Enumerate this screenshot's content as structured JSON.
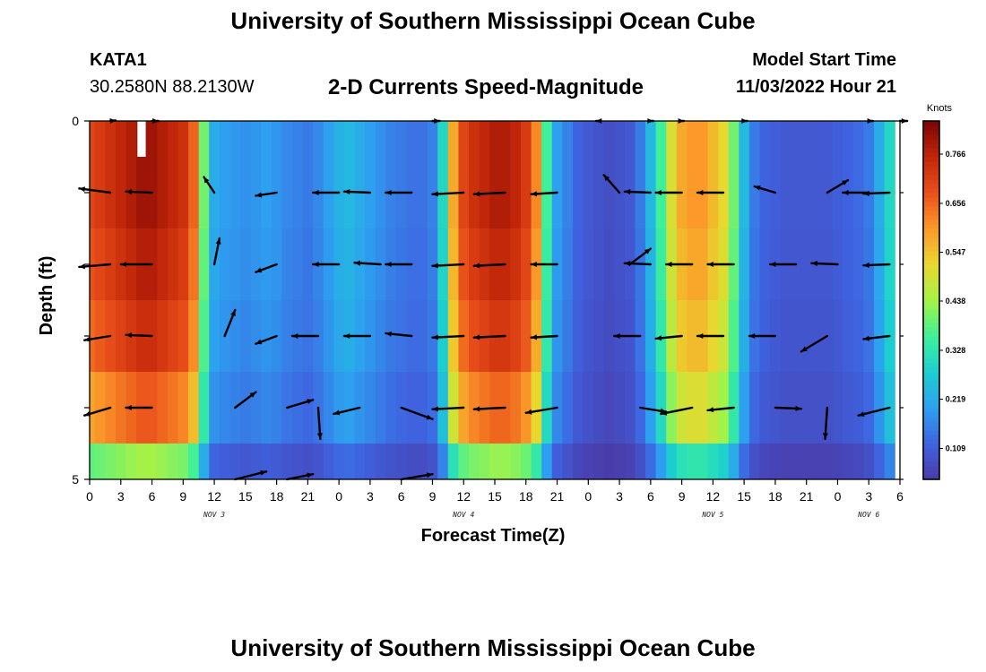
{
  "page": {
    "title": "University of Southern Mississippi Ocean Cube",
    "station_id": "KATA1",
    "station_coords": "30.2580N  88.2130W",
    "model_start_label": "Model Start Time",
    "model_start_value": "11/03/2022 Hour 21"
  },
  "colors": {
    "background": "#ffffff",
    "axis": "#000000",
    "arrow": "#000000",
    "colormap": [
      "#4a3aa8",
      "#3f63e0",
      "#2da0f0",
      "#1ccfd0",
      "#3ef09a",
      "#a5f246",
      "#e9d82f",
      "#fb9a2a",
      "#e9501a",
      "#c2260a",
      "#7a0403"
    ]
  },
  "chart_data": {
    "type": "heatmap",
    "title": "2-D Currents Speed-Magnitude",
    "xlabel": "Forecast Time(Z)",
    "ylabel": "Depth (ft)",
    "colorbar_label": "Knots",
    "colorbar_ticks": [
      0.109,
      0.219,
      0.328,
      0.438,
      0.547,
      0.656,
      0.766
    ],
    "color_range": [
      0.04,
      0.84
    ],
    "x_unit": "forecast hours from 11/03 00Z",
    "xlim": [
      0,
      78
    ],
    "x_tick_hours": [
      0,
      3,
      6,
      9,
      12,
      15,
      18,
      21,
      24,
      27,
      30,
      33,
      36,
      39,
      42,
      45,
      48,
      51,
      54,
      57,
      60,
      63,
      66,
      69,
      72,
      75,
      78
    ],
    "x_tick_labels": [
      "0",
      "3",
      "6",
      "9",
      "12",
      "15",
      "18",
      "21",
      "0",
      "3",
      "6",
      "9",
      "12",
      "15",
      "18",
      "21",
      "0",
      "3",
      "6",
      "9",
      "12",
      "15",
      "18",
      "21",
      "0",
      "3",
      "6"
    ],
    "day_labels": [
      {
        "hour": 12,
        "text": "NOV 3"
      },
      {
        "hour": 36,
        "text": "NOV 4"
      },
      {
        "hour": 60,
        "text": "NOV 5"
      },
      {
        "hour": 75,
        "text": "NOV 6"
      }
    ],
    "ylim": [
      0,
      5
    ],
    "y_ticks": [
      0,
      1,
      2,
      3,
      4,
      5
    ],
    "y_tick_labels": [
      "0",
      "",
      "",
      "",
      "",
      "5"
    ],
    "depth_bins": [
      0,
      0.5,
      1.5,
      2.5,
      3.5,
      4.5,
      5
    ],
    "time_hours": [
      0,
      1,
      2,
      3,
      4,
      5,
      6,
      7,
      8,
      9,
      10,
      11,
      12,
      13,
      14,
      15,
      16,
      17,
      18,
      19,
      20,
      21,
      22,
      23,
      24,
      25,
      26,
      27,
      28,
      29,
      30,
      31,
      32,
      33,
      34,
      35,
      36,
      37,
      38,
      39,
      40,
      41,
      42,
      43,
      44,
      45,
      46,
      47,
      48,
      49,
      50,
      51,
      52,
      53,
      54,
      55,
      56,
      57,
      58,
      59,
      60,
      61,
      62,
      63,
      64,
      65,
      66,
      67,
      68,
      69,
      70,
      71,
      72,
      73,
      74,
      75,
      76,
      77
    ],
    "speed_profile_knots": [
      0.7,
      0.72,
      0.74,
      0.76,
      0.78,
      0.8,
      0.8,
      0.78,
      0.76,
      0.74,
      0.66,
      0.4,
      0.22,
      0.2,
      0.19,
      0.18,
      0.19,
      0.2,
      0.19,
      0.17,
      0.16,
      0.15,
      0.17,
      0.2,
      0.23,
      0.24,
      0.22,
      0.2,
      0.18,
      0.16,
      0.15,
      0.14,
      0.14,
      0.16,
      0.3,
      0.58,
      0.7,
      0.74,
      0.76,
      0.78,
      0.78,
      0.76,
      0.72,
      0.62,
      0.36,
      0.2,
      0.16,
      0.12,
      0.1,
      0.09,
      0.08,
      0.09,
      0.1,
      0.15,
      0.24,
      0.36,
      0.5,
      0.58,
      0.6,
      0.6,
      0.56,
      0.52,
      0.4,
      0.24,
      0.15,
      0.12,
      0.11,
      0.1,
      0.1,
      0.1,
      0.1,
      0.1,
      0.11,
      0.12,
      0.13,
      0.15,
      0.22,
      0.3
    ],
    "depth_scale": [
      1.0,
      1.0,
      0.97,
      0.93,
      0.84,
      0.55
    ],
    "missing_cells": [
      {
        "hour": 5,
        "depth_bin": 0
      }
    ],
    "vector_depths": [
      0,
      1,
      2,
      3,
      4,
      5
    ],
    "vectors": [
      {
        "hour": 2,
        "depth": 0,
        "u": 0.1,
        "v": 0.01
      },
      {
        "hour": 6,
        "depth": 0,
        "u": 0.12,
        "v": 0.0
      },
      {
        "hour": 33,
        "depth": 0,
        "u": 0.14,
        "v": 0.0
      },
      {
        "hour": 49,
        "depth": 0,
        "u": -0.05,
        "v": 0.0
      },
      {
        "hour": 54,
        "depth": 0,
        "u": 0.05,
        "v": 0.0
      },
      {
        "hour": 57,
        "depth": 0,
        "u": 0.04,
        "v": 0.0
      },
      {
        "hour": 63,
        "depth": 0,
        "u": 0.06,
        "v": 0.0
      },
      {
        "hour": 75,
        "depth": 0,
        "u": 0.08,
        "v": 0.0
      },
      {
        "hour": 78,
        "depth": 0,
        "u": 0.14,
        "v": 0.0
      },
      {
        "hour": 2,
        "depth": 1,
        "u": -0.6,
        "v": 0.08
      },
      {
        "hour": 6,
        "depth": 1,
        "u": -0.5,
        "v": 0.02
      },
      {
        "hour": 12,
        "depth": 1,
        "u": -0.2,
        "v": 0.3
      },
      {
        "hour": 18,
        "depth": 1,
        "u": -0.4,
        "v": -0.06
      },
      {
        "hour": 24,
        "depth": 1,
        "u": -0.5,
        "v": 0.0
      },
      {
        "hour": 27,
        "depth": 1,
        "u": -0.5,
        "v": 0.02
      },
      {
        "hour": 31,
        "depth": 1,
        "u": -0.5,
        "v": 0.0
      },
      {
        "hour": 36,
        "depth": 1,
        "u": -0.6,
        "v": -0.03
      },
      {
        "hour": 40,
        "depth": 1,
        "u": -0.6,
        "v": -0.03
      },
      {
        "hour": 45,
        "depth": 1,
        "u": -0.5,
        "v": -0.03
      },
      {
        "hour": 51,
        "depth": 1,
        "u": -0.3,
        "v": 0.34
      },
      {
        "hour": 54,
        "depth": 1,
        "u": -0.5,
        "v": 0.02
      },
      {
        "hour": 57,
        "depth": 1,
        "u": -0.5,
        "v": 0.0
      },
      {
        "hour": 61,
        "depth": 1,
        "u": -0.5,
        "v": 0.0
      },
      {
        "hour": 66,
        "depth": 1,
        "u": -0.4,
        "v": 0.12
      },
      {
        "hour": 71,
        "depth": 1,
        "u": 0.4,
        "v": 0.24
      },
      {
        "hour": 75,
        "depth": 1,
        "u": -0.5,
        "v": 0.0
      },
      {
        "hour": 77,
        "depth": 1,
        "u": -0.5,
        "v": -0.02
      },
      {
        "hour": 2,
        "depth": 2,
        "u": -0.6,
        "v": -0.05
      },
      {
        "hour": 6,
        "depth": 2,
        "u": -0.6,
        "v": 0.0
      },
      {
        "hour": 12,
        "depth": 2,
        "u": 0.1,
        "v": 0.5
      },
      {
        "hour": 18,
        "depth": 2,
        "u": -0.4,
        "v": -0.15
      },
      {
        "hour": 24,
        "depth": 2,
        "u": -0.5,
        "v": 0.0
      },
      {
        "hour": 28,
        "depth": 2,
        "u": -0.5,
        "v": 0.03
      },
      {
        "hour": 31,
        "depth": 2,
        "u": -0.5,
        "v": 0.0
      },
      {
        "hour": 36,
        "depth": 2,
        "u": -0.6,
        "v": -0.03
      },
      {
        "hour": 40,
        "depth": 2,
        "u": -0.6,
        "v": -0.03
      },
      {
        "hour": 45,
        "depth": 2,
        "u": -0.5,
        "v": 0.0
      },
      {
        "hour": 52,
        "depth": 2,
        "u": 0.4,
        "v": 0.3
      },
      {
        "hour": 54,
        "depth": 2,
        "u": -0.5,
        "v": 0.02
      },
      {
        "hour": 58,
        "depth": 2,
        "u": -0.5,
        "v": 0.0
      },
      {
        "hour": 62,
        "depth": 2,
        "u": -0.5,
        "v": 0.0
      },
      {
        "hour": 68,
        "depth": 2,
        "u": -0.5,
        "v": 0.0
      },
      {
        "hour": 72,
        "depth": 2,
        "u": -0.5,
        "v": 0.02
      },
      {
        "hour": 77,
        "depth": 2,
        "u": -0.5,
        "v": -0.02
      },
      {
        "hour": 2,
        "depth": 3,
        "u": -0.5,
        "v": -0.08
      },
      {
        "hour": 6,
        "depth": 3,
        "u": -0.5,
        "v": 0.02
      },
      {
        "hour": 13,
        "depth": 3,
        "u": 0.2,
        "v": 0.5
      },
      {
        "hour": 18,
        "depth": 3,
        "u": -0.4,
        "v": -0.15
      },
      {
        "hour": 22,
        "depth": 3,
        "u": -0.5,
        "v": 0.0
      },
      {
        "hour": 27,
        "depth": 3,
        "u": -0.5,
        "v": 0.0
      },
      {
        "hour": 31,
        "depth": 3,
        "u": -0.5,
        "v": 0.05
      },
      {
        "hour": 36,
        "depth": 3,
        "u": -0.6,
        "v": -0.03
      },
      {
        "hour": 40,
        "depth": 3,
        "u": -0.6,
        "v": -0.03
      },
      {
        "hour": 45,
        "depth": 3,
        "u": -0.5,
        "v": -0.03
      },
      {
        "hour": 53,
        "depth": 3,
        "u": -0.5,
        "v": 0.0
      },
      {
        "hour": 57,
        "depth": 3,
        "u": -0.5,
        "v": -0.05
      },
      {
        "hour": 61,
        "depth": 3,
        "u": -0.5,
        "v": 0.0
      },
      {
        "hour": 66,
        "depth": 3,
        "u": -0.5,
        "v": 0.0
      },
      {
        "hour": 71,
        "depth": 3,
        "u": -0.5,
        "v": -0.3
      },
      {
        "hour": 77,
        "depth": 3,
        "u": -0.5,
        "v": -0.06
      },
      {
        "hour": 2,
        "depth": 4,
        "u": -0.5,
        "v": -0.15
      },
      {
        "hour": 6,
        "depth": 4,
        "u": -0.5,
        "v": 0.0
      },
      {
        "hour": 14,
        "depth": 4,
        "u": 0.4,
        "v": 0.3
      },
      {
        "hour": 19,
        "depth": 4,
        "u": 0.5,
        "v": 0.15
      },
      {
        "hour": 22,
        "depth": 4,
        "u": 0.04,
        "v": -0.6
      },
      {
        "hour": 26,
        "depth": 4,
        "u": -0.5,
        "v": -0.12
      },
      {
        "hour": 30,
        "depth": 4,
        "u": 0.6,
        "v": -0.22
      },
      {
        "hour": 36,
        "depth": 4,
        "u": -0.6,
        "v": -0.03
      },
      {
        "hour": 40,
        "depth": 4,
        "u": -0.6,
        "v": -0.03
      },
      {
        "hour": 45,
        "depth": 4,
        "u": -0.6,
        "v": -0.1
      },
      {
        "hour": 53,
        "depth": 4,
        "u": 0.5,
        "v": -0.08
      },
      {
        "hour": 58,
        "depth": 4,
        "u": -0.6,
        "v": -0.12
      },
      {
        "hour": 62,
        "depth": 4,
        "u": -0.5,
        "v": -0.05
      },
      {
        "hour": 66,
        "depth": 4,
        "u": 0.5,
        "v": -0.02
      },
      {
        "hour": 71,
        "depth": 4,
        "u": -0.04,
        "v": -0.6
      },
      {
        "hour": 77,
        "depth": 4,
        "u": -0.6,
        "v": -0.15
      },
      {
        "hour": 14,
        "depth": 5,
        "u": 0.6,
        "v": 0.15
      },
      {
        "hour": 19,
        "depth": 5,
        "u": 0.5,
        "v": 0.1
      },
      {
        "hour": 30,
        "depth": 5,
        "u": 0.6,
        "v": 0.1
      }
    ]
  }
}
